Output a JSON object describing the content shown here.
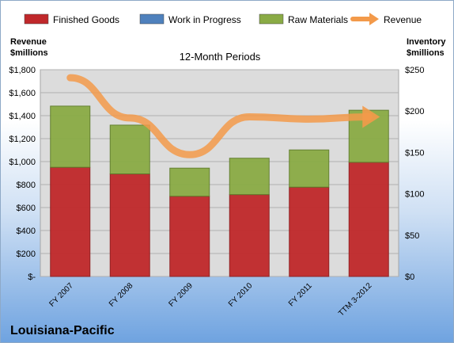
{
  "company": "Louisiana-Pacific",
  "chart_data": {
    "type": "bar",
    "title": "12-Month Periods",
    "categories": [
      "FY 2007",
      "FY 2008",
      "FY 2009",
      "FY 2010",
      "FY 2011",
      "TTM 3-2012"
    ],
    "stacked": true,
    "series": [
      {
        "name": "Finished Goods",
        "axis": "right",
        "color": "#c0282b",
        "values": [
          132,
          124,
          97,
          99,
          108,
          138
        ]
      },
      {
        "name": "Work in Progress",
        "axis": "right",
        "color": "#4f81bd",
        "values": [
          0,
          0,
          0,
          0,
          0,
          0
        ]
      },
      {
        "name": "Raw Materials",
        "axis": "right",
        "color": "#8aab45",
        "values": [
          74,
          59,
          34,
          44,
          45,
          63
        ]
      },
      {
        "name": "Revenue",
        "axis": "left",
        "type": "line",
        "color": "#f39a4a",
        "values": [
          1730,
          1380,
          1060,
          1390,
          1370,
          1390
        ]
      }
    ],
    "left_axis": {
      "label_line1": "Revenue",
      "label_line2": "$millions",
      "ylim": [
        0,
        1800
      ],
      "ticks": [
        "$-",
        "$200",
        "$400",
        "$600",
        "$800",
        "$1,000",
        "$1,200",
        "$1,400",
        "$1,600",
        "$1,800"
      ]
    },
    "right_axis": {
      "label_line1": "Inventory",
      "label_line2": "$millions",
      "ylim": [
        0,
        250
      ],
      "ticks": [
        "$0",
        "$50",
        "$100",
        "$150",
        "$200",
        "$250"
      ]
    },
    "grid": true,
    "legend_position": "top"
  }
}
